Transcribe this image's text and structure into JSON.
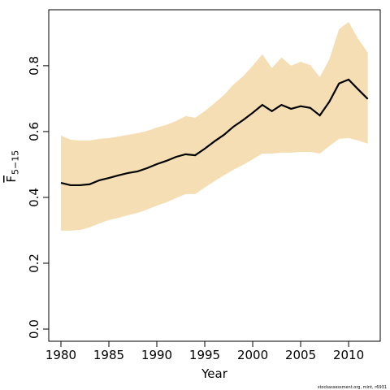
{
  "chart_data": {
    "type": "line",
    "xlabel": "Year",
    "ylabel": "F",
    "ylabel_sub": "5−15",
    "footer": "stockassessment.org, mint, r6931",
    "x": [
      1980,
      1981,
      1982,
      1983,
      1984,
      1985,
      1986,
      1987,
      1988,
      1989,
      1990,
      1991,
      1992,
      1993,
      1994,
      1995,
      1996,
      1997,
      1998,
      1999,
      2000,
      2001,
      2002,
      2003,
      2004,
      2005,
      2006,
      2007,
      2008,
      2009,
      2010,
      2011,
      2012
    ],
    "values": [
      0.444,
      0.437,
      0.437,
      0.44,
      0.452,
      0.459,
      0.467,
      0.474,
      0.479,
      0.489,
      0.501,
      0.511,
      0.523,
      0.531,
      0.528,
      0.548,
      0.57,
      0.59,
      0.615,
      0.635,
      0.657,
      0.681,
      0.662,
      0.681,
      0.669,
      0.677,
      0.672,
      0.649,
      0.691,
      0.746,
      0.758,
      0.728,
      0.699
    ],
    "upper": [
      0.588,
      0.575,
      0.573,
      0.573,
      0.578,
      0.58,
      0.585,
      0.59,
      0.595,
      0.602,
      0.612,
      0.62,
      0.632,
      0.647,
      0.642,
      0.662,
      0.686,
      0.711,
      0.743,
      0.768,
      0.8,
      0.835,
      0.793,
      0.825,
      0.8,
      0.812,
      0.802,
      0.765,
      0.82,
      0.911,
      0.933,
      0.881,
      0.84
    ],
    "lower": [
      0.299,
      0.299,
      0.301,
      0.309,
      0.321,
      0.331,
      0.338,
      0.346,
      0.353,
      0.363,
      0.375,
      0.385,
      0.398,
      0.41,
      0.41,
      0.43,
      0.449,
      0.467,
      0.484,
      0.499,
      0.516,
      0.533,
      0.533,
      0.536,
      0.536,
      0.538,
      0.538,
      0.533,
      0.556,
      0.578,
      0.58,
      0.573,
      0.563
    ],
    "color": "#000000",
    "band_color": "#f5deb3",
    "xlim": [
      1978.73,
      2013.3
    ],
    "ylim": [
      -0.037,
      0.97
    ],
    "xticks": [
      1980,
      1985,
      1990,
      1995,
      2000,
      2005,
      2010
    ],
    "yticks": [
      {
        "value": 0,
        "label": "0.0"
      },
      0.2,
      0.4,
      0.6,
      0.8
    ]
  }
}
